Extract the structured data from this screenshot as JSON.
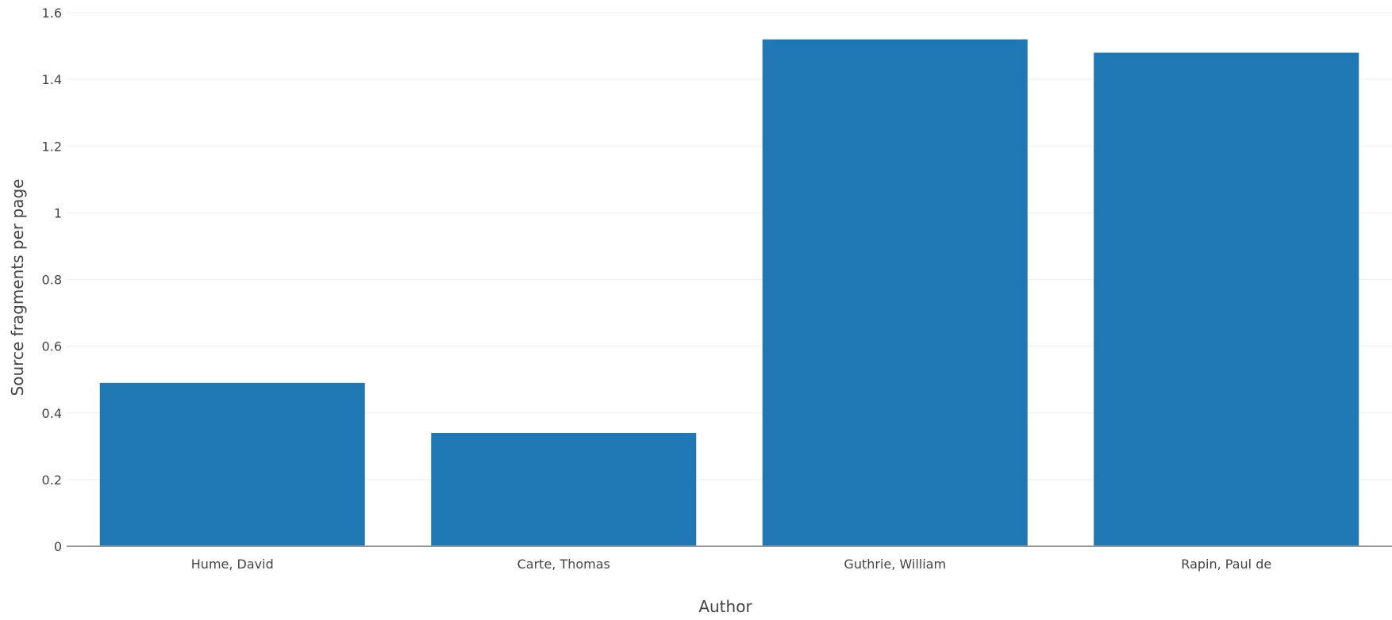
{
  "chart_data": {
    "type": "bar",
    "title": "",
    "xlabel": "Author",
    "ylabel": "Source fragments per page",
    "categories": [
      "Hume, David",
      "Carte, Thomas",
      "Guthrie, William",
      "Rapin, Paul de"
    ],
    "values": [
      0.49,
      0.34,
      1.52,
      1.48
    ],
    "ylim": [
      0,
      1.6
    ],
    "yticks": [
      0,
      0.2,
      0.4,
      0.6,
      0.8,
      1,
      1.2,
      1.4,
      1.6
    ],
    "ytick_labels": [
      "0",
      "0.2",
      "0.4",
      "0.6",
      "0.8",
      "1",
      "1.2",
      "1.4",
      "1.6"
    ],
    "grid": true,
    "legend": "none",
    "colors": {
      "bar": "#1f77b4",
      "grid": "#eeeeee",
      "axis_line": "#444444",
      "text": "#444444"
    }
  }
}
